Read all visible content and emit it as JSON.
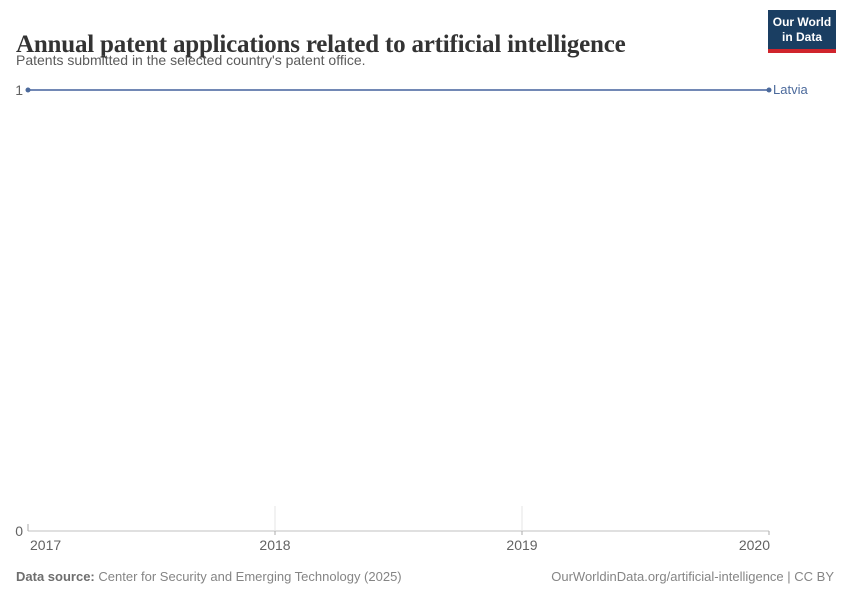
{
  "header": {
    "title": "Annual patent applications related to artificial intelligence",
    "subtitle": "Patents submitted in the selected country's patent office."
  },
  "logo": {
    "line1": "Our World",
    "line2": "in Data",
    "bg_color": "#1a3e62",
    "accent_color": "#d0242c"
  },
  "chart_data": {
    "type": "line",
    "title": "Annual patent applications related to artificial intelligence",
    "x": [
      2017,
      2018,
      2019,
      2020
    ],
    "series": [
      {
        "name": "Latvia",
        "values": [
          1,
          1,
          1,
          1
        ],
        "color": "#4c6a9c",
        "line_color": "#7288b5"
      }
    ],
    "xlabel": "",
    "ylabel": "",
    "xlim": [
      2017,
      2020
    ],
    "ylim": [
      0,
      1
    ],
    "x_ticks": [
      "2017",
      "2018",
      "2019",
      "2020"
    ],
    "y_ticks": [
      "0",
      "1"
    ],
    "grid": false,
    "legend_position": "end-of-line-label",
    "axis_color": "#c2c2c2",
    "tick_color": "#ababab",
    "faint_tick_color": "#e4e4e4"
  },
  "footer": {
    "data_source_label": "Data source:",
    "data_source_value": "Center for Security and Emerging Technology (2025)",
    "attribution": "OurWorldinData.org/artificial-intelligence | CC BY"
  }
}
